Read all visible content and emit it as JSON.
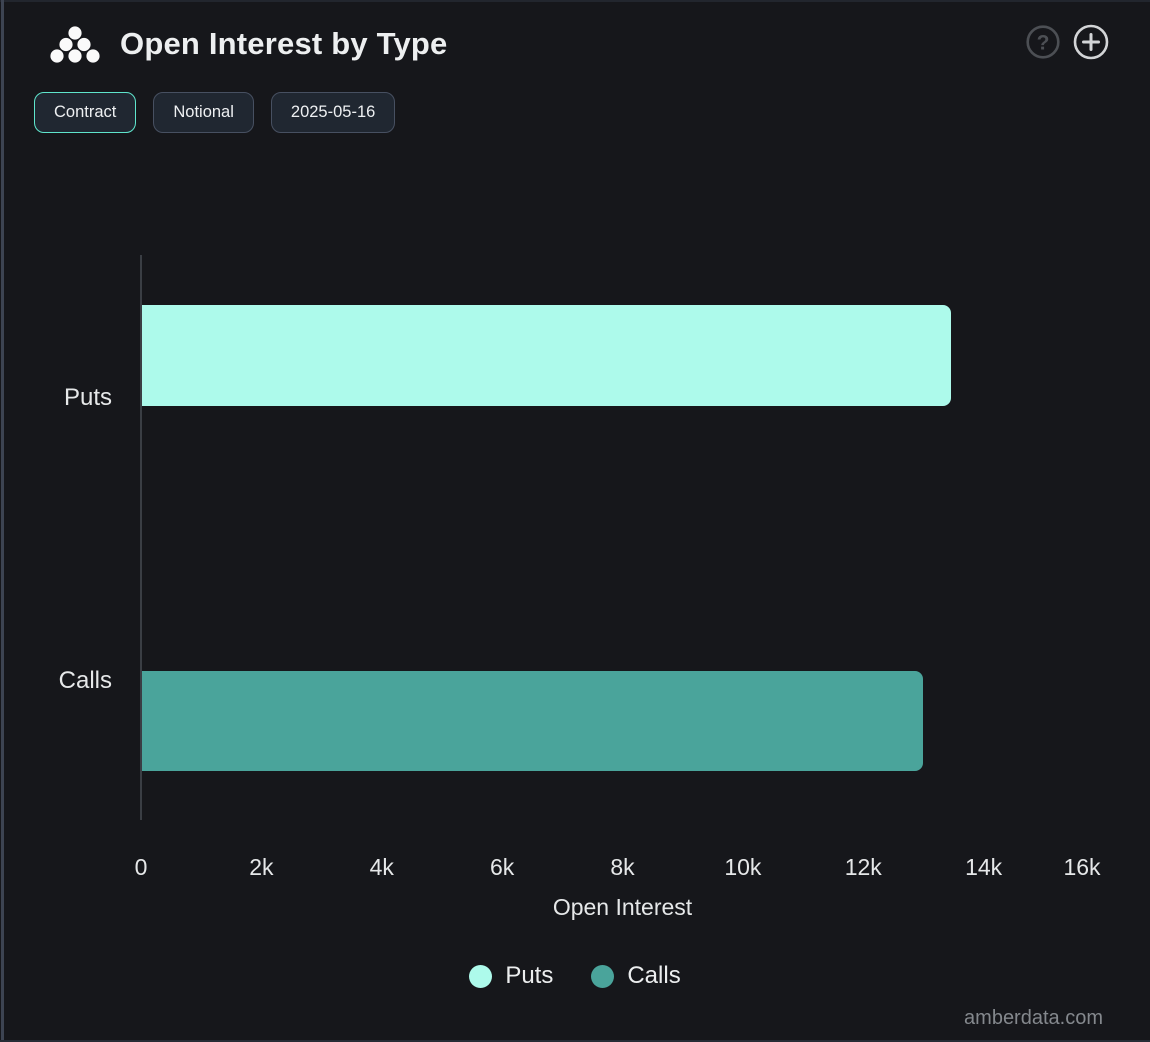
{
  "header": {
    "title": "Open Interest by Type",
    "logo_icon": "dots-pyramid-logo",
    "help_icon": "question-mark-circle",
    "add_icon": "plus-circle"
  },
  "toolbar": {
    "buttons": [
      {
        "label": "Contract",
        "active": true
      },
      {
        "label": "Notional",
        "active": false
      },
      {
        "label": "2025-05-16",
        "active": false
      }
    ]
  },
  "chart_data": {
    "type": "bar",
    "orientation": "horizontal",
    "title": "Open Interest by Type",
    "categories": [
      "Puts",
      "Calls"
    ],
    "values": [
      13440,
      12980
    ],
    "series_colors": [
      "#adfaeb",
      "#4aa49b"
    ],
    "xlabel": "Open Interest",
    "ylabel": "",
    "xlim": [
      0,
      16000
    ],
    "xticks": [
      0,
      2000,
      4000,
      6000,
      8000,
      10000,
      12000,
      14000,
      16000
    ],
    "xtick_labels": [
      "0",
      "2k",
      "4k",
      "6k",
      "8k",
      "10k",
      "12k",
      "14k",
      "16k"
    ],
    "grid": false,
    "legend_position": "bottom",
    "legend": [
      {
        "label": "Puts",
        "color": "#adfaeb"
      },
      {
        "label": "Calls",
        "color": "#4aa49b"
      }
    ]
  },
  "watermark": "amberdata.com",
  "colors": {
    "background": "#16171b",
    "panel_edge": "#3d4452",
    "axis_line": "#3a3e44",
    "text_primary": "#edeff0",
    "text_muted": "#84888d",
    "accent_active_border": "#5fe5cc",
    "button_background": "#202731",
    "button_border": "#475061",
    "puts_bar": "#adfaeb",
    "calls_bar": "#4aa49b"
  }
}
